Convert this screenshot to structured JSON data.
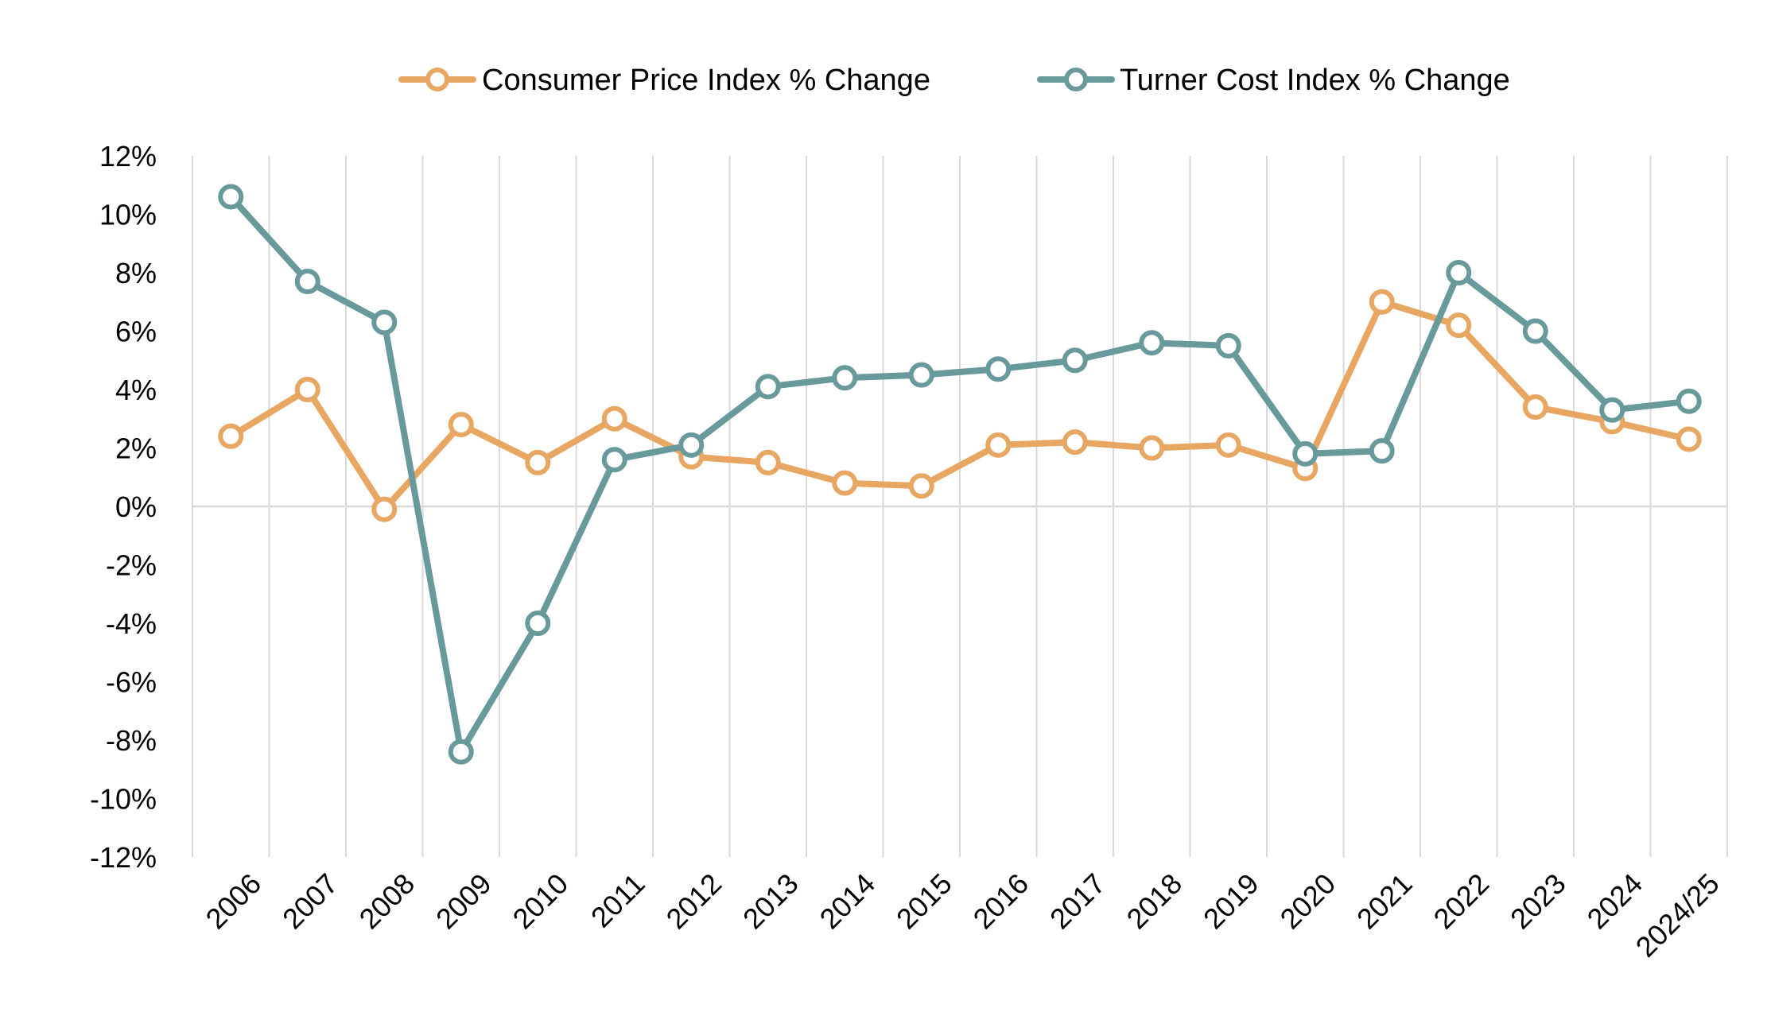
{
  "chart_data": {
    "type": "line",
    "categories": [
      "2006",
      "2007",
      "2008",
      "2009",
      "2010",
      "2011",
      "2012",
      "2013",
      "2014",
      "2015",
      "2016",
      "2017",
      "2018",
      "2019",
      "2020",
      "2021",
      "2022",
      "2023",
      "2024",
      "2024/25"
    ],
    "series": [
      {
        "name": "Consumer Price Index % Change",
        "color": "#E8A663",
        "values": [
          2.4,
          4.0,
          -0.1,
          2.8,
          1.5,
          3.0,
          1.7,
          1.5,
          0.8,
          0.7,
          2.1,
          2.2,
          2.0,
          2.1,
          1.3,
          7.0,
          6.2,
          3.4,
          2.9,
          2.3
        ]
      },
      {
        "name": "Turner Cost Index % Change",
        "color": "#689A9B",
        "values": [
          10.6,
          7.7,
          6.3,
          -8.4,
          -4.0,
          1.6,
          2.1,
          4.1,
          4.4,
          4.5,
          4.7,
          5.0,
          5.6,
          5.5,
          1.8,
          1.9,
          8.0,
          6.0,
          3.3,
          3.6
        ]
      }
    ],
    "ylim": [
      -12,
      12
    ],
    "ytick_step": 2,
    "ytick_labels": [
      "12%",
      "10%",
      "8%",
      "6%",
      "4%",
      "2%",
      "0%",
      "-2%",
      "-4%",
      "-6%",
      "-8%",
      "-10%",
      "-12%"
    ],
    "grid": "vertical",
    "legend": "top-center",
    "title": "",
    "xlabel": "",
    "ylabel": ""
  }
}
